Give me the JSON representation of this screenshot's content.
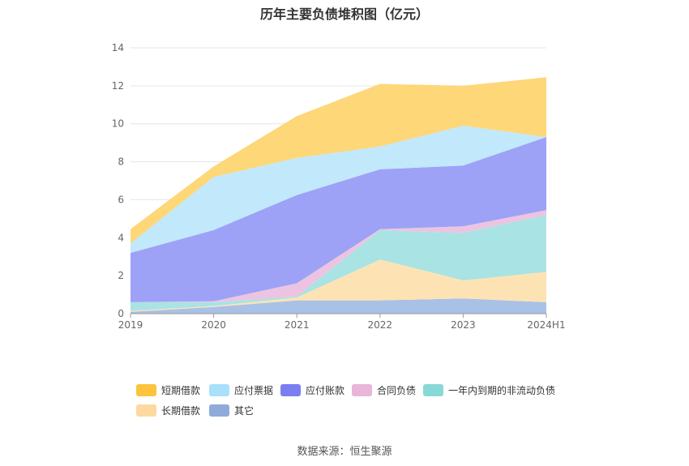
{
  "chart_data": {
    "type": "area",
    "title": "历年主要负债堆积图（亿元）",
    "categories": [
      "2019",
      "2020",
      "2021",
      "2022",
      "2023",
      "2024H1"
    ],
    "ylim": [
      0,
      14
    ],
    "yticks": [
      0,
      2,
      4,
      6,
      8,
      10,
      12,
      14
    ],
    "stacked": true,
    "grid": true,
    "legend_position": "bottom",
    "series": [
      {
        "name": "其它",
        "color": "#a9c1e6",
        "values": [
          0.1,
          0.35,
          0.7,
          0.7,
          0.8,
          0.6
        ]
      },
      {
        "name": "长期借款",
        "color": "#fde3b4",
        "values": [
          0.05,
          0.05,
          0.15,
          2.15,
          0.95,
          1.6
        ]
      },
      {
        "name": "一年内到期的非流动负债",
        "color": "#a9e3e3",
        "values": [
          0.45,
          0.2,
          0.05,
          1.55,
          2.5,
          3.0
        ]
      },
      {
        "name": "合同负债",
        "color": "#ecc4e1",
        "values": [
          0.0,
          0.05,
          0.7,
          0.05,
          0.35,
          0.25
        ]
      },
      {
        "name": "应付账款",
        "color": "#9da2f7",
        "values": [
          2.6,
          3.75,
          4.65,
          3.15,
          3.2,
          3.85
        ]
      },
      {
        "name": "应付票据",
        "color": "#c2e8fb",
        "values": [
          0.5,
          2.8,
          1.95,
          1.2,
          2.1,
          0.0
        ]
      },
      {
        "name": "短期借款",
        "color": "#fdd778",
        "values": [
          0.75,
          0.55,
          2.2,
          3.3,
          2.1,
          3.15
        ]
      }
    ],
    "legend": [
      {
        "name": "短期借款",
        "color": "#fcc43c"
      },
      {
        "name": "应付票据",
        "color": "#a9e0fb"
      },
      {
        "name": "应付账款",
        "color": "#7b7ef0"
      },
      {
        "name": "合同负债",
        "color": "#e7b6d9"
      },
      {
        "name": "一年内到期的非流动负债",
        "color": "#88d8d8"
      },
      {
        "name": "长期借款",
        "color": "#fdd9a0"
      },
      {
        "name": "其它",
        "color": "#8fabd9"
      }
    ]
  },
  "footer": {
    "source": "数据来源：恒生聚源"
  }
}
